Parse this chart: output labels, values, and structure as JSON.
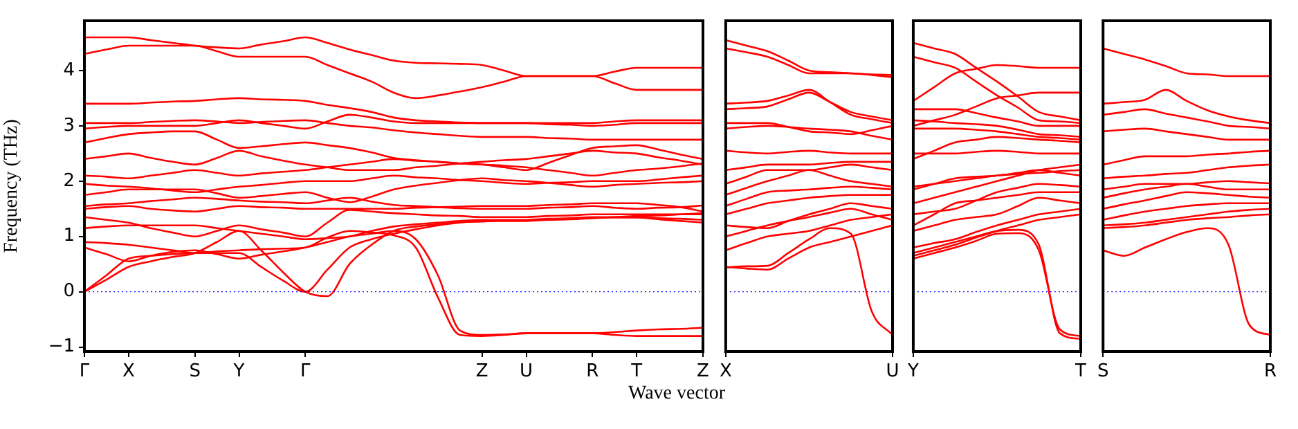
{
  "chart_data": [
    {
      "type": "line",
      "xlabel": "Wave vector",
      "ylabel": "Frequency (THz)",
      "ylim": [
        -1.08,
        4.9
      ],
      "yticks": [
        {
          "value": -1,
          "label": "−1"
        },
        0,
        1,
        2,
        3,
        4
      ],
      "grid": false,
      "legend": false,
      "marker": "none",
      "line_style": "solid",
      "ref_lines": [
        {
          "axis": "y",
          "value": 0,
          "color": "#0000ff",
          "line_style": "dotted"
        }
      ],
      "categories": [
        "Γ",
        null,
        "X",
        null,
        null,
        "S",
        null,
        "Y",
        null,
        null,
        "Γ",
        null,
        null,
        null,
        null,
        null,
        null,
        null,
        "Z",
        null,
        "U",
        null,
        null,
        "R",
        null,
        "T",
        null,
        null,
        "Z"
      ],
      "series": [
        {
          "color": "#ff0000",
          "values": [
            4.6,
            4.6,
            4.6,
            4.55,
            4.5,
            4.45,
            4.42,
            4.4,
            4.47,
            4.53,
            4.6,
            4.5,
            4.38,
            4.28,
            4.18,
            4.14,
            4.13,
            4.12,
            4.1,
            4.0,
            3.9,
            3.9,
            3.9,
            3.9,
            3.98,
            4.05,
            4.05,
            4.05,
            4.05
          ]
        },
        {
          "color": "#ff0000",
          "values": [
            4.3,
            4.38,
            4.45,
            4.45,
            4.45,
            4.45,
            4.35,
            4.25,
            4.25,
            4.25,
            4.25,
            4.1,
            3.95,
            3.8,
            3.6,
            3.5,
            3.55,
            3.62,
            3.7,
            3.8,
            3.9,
            3.9,
            3.9,
            3.9,
            3.77,
            3.65,
            3.65,
            3.65,
            3.65
          ]
        },
        {
          "color": "#ff0000",
          "values": [
            3.4,
            3.4,
            3.4,
            3.42,
            3.44,
            3.45,
            3.48,
            3.5,
            3.48,
            3.47,
            3.45,
            3.38,
            3.32,
            3.25,
            3.15,
            3.1,
            3.08,
            3.06,
            3.05,
            3.05,
            3.05,
            3.05,
            3.05,
            3.05,
            3.08,
            3.1,
            3.1,
            3.1,
            3.1
          ]
        },
        {
          "color": "#ff0000",
          "values": [
            3.05,
            3.05,
            3.05,
            3.07,
            3.09,
            3.1,
            3.08,
            3.05,
            3.07,
            3.09,
            3.1,
            3.05,
            3.0,
            2.97,
            2.92,
            2.88,
            2.85,
            2.82,
            2.8,
            2.8,
            2.8,
            2.78,
            2.77,
            2.75,
            2.75,
            2.75,
            2.75,
            2.75,
            2.75
          ]
        },
        {
          "color": "#ff0000",
          "values": [
            2.95,
            2.98,
            3.0,
            3.0,
            3.0,
            3.0,
            3.05,
            3.1,
            3.05,
            3.0,
            2.95,
            3.08,
            3.2,
            3.15,
            3.08,
            3.05,
            3.05,
            3.05,
            3.05,
            3.05,
            3.05,
            3.03,
            3.02,
            3.0,
            3.02,
            3.05,
            3.05,
            3.05,
            3.05
          ]
        },
        {
          "color": "#ff0000",
          "values": [
            2.7,
            2.78,
            2.85,
            2.88,
            2.9,
            2.9,
            2.75,
            2.6,
            2.63,
            2.67,
            2.7,
            2.65,
            2.6,
            2.52,
            2.42,
            2.38,
            2.35,
            2.32,
            2.3,
            2.25,
            2.2,
            2.33,
            2.47,
            2.6,
            2.63,
            2.65,
            2.57,
            2.48,
            2.4
          ]
        },
        {
          "color": "#ff0000",
          "values": [
            2.4,
            2.45,
            2.5,
            2.42,
            2.35,
            2.3,
            2.42,
            2.55,
            2.45,
            2.37,
            2.3,
            2.25,
            2.2,
            2.2,
            2.2,
            2.25,
            2.28,
            2.32,
            2.35,
            2.38,
            2.4,
            2.45,
            2.5,
            2.55,
            2.52,
            2.5,
            2.43,
            2.37,
            2.3
          ]
        },
        {
          "color": "#ff0000",
          "values": [
            2.1,
            2.08,
            2.05,
            2.1,
            2.15,
            2.2,
            2.15,
            2.1,
            2.14,
            2.17,
            2.2,
            2.25,
            2.3,
            2.35,
            2.4,
            2.37,
            2.35,
            2.32,
            2.3,
            2.28,
            2.25,
            2.2,
            2.15,
            2.1,
            2.15,
            2.2,
            2.23,
            2.27,
            2.32
          ]
        },
        {
          "color": "#ff0000",
          "values": [
            1.95,
            1.92,
            1.9,
            1.87,
            1.83,
            1.8,
            1.85,
            1.9,
            1.93,
            1.97,
            2.0,
            2.0,
            2.0,
            2.05,
            2.1,
            2.07,
            2.05,
            2.02,
            2.0,
            1.97,
            1.95,
            1.97,
            1.98,
            2.0,
            2.0,
            2.0,
            2.03,
            2.07,
            2.1
          ]
        },
        {
          "color": "#ff0000",
          "values": [
            1.75,
            1.8,
            1.85,
            1.85,
            1.85,
            1.85,
            1.78,
            1.7,
            1.73,
            1.77,
            1.8,
            1.7,
            1.62,
            1.72,
            1.85,
            1.92,
            1.97,
            2.02,
            2.05,
            2.02,
            2.0,
            1.97,
            1.93,
            1.9,
            1.93,
            1.95,
            1.97,
            1.98,
            2.0
          ]
        },
        {
          "color": "#ff0000",
          "values": [
            1.55,
            1.58,
            1.6,
            1.64,
            1.67,
            1.7,
            1.68,
            1.65,
            1.63,
            1.62,
            1.6,
            1.65,
            1.7,
            1.63,
            1.57,
            1.55,
            1.53,
            1.51,
            1.5,
            1.5,
            1.5,
            1.52,
            1.53,
            1.55,
            1.52,
            1.5,
            1.52,
            1.53,
            1.56
          ]
        },
        {
          "color": "#ff0000",
          "values": [
            1.5,
            1.53,
            1.55,
            1.5,
            1.47,
            1.45,
            1.5,
            1.55,
            1.53,
            1.52,
            1.5,
            1.5,
            1.5,
            1.5,
            1.5,
            1.52,
            1.53,
            1.54,
            1.55,
            1.55,
            1.55,
            1.57,
            1.58,
            1.6,
            1.6,
            1.6,
            1.57,
            1.53,
            1.45
          ]
        },
        {
          "color": "#ff0000",
          "values": [
            1.35,
            1.3,
            1.25,
            1.15,
            1.07,
            1.0,
            1.1,
            1.2,
            1.13,
            1.07,
            1.0,
            1.25,
            1.48,
            1.45,
            1.42,
            1.4,
            1.38,
            1.37,
            1.35,
            1.35,
            1.35,
            1.37,
            1.38,
            1.4,
            1.4,
            1.4,
            1.4,
            1.4,
            1.4
          ]
        },
        {
          "color": "#ff0000",
          "values": [
            1.15,
            1.18,
            1.2,
            1.2,
            1.2,
            1.2,
            1.15,
            1.1,
            1.05,
            1.0,
            0.95,
            0.97,
            1.0,
            1.1,
            1.18,
            1.22,
            1.25,
            1.28,
            1.3,
            1.3,
            1.3,
            1.32,
            1.33,
            1.35,
            1.35,
            1.35,
            1.33,
            1.32,
            1.3
          ]
        },
        {
          "color": "#ff0000",
          "values": [
            0,
            0.3,
            0.6,
            0.65,
            0.68,
            0.7,
            0.7,
            0.7,
            0.45,
            0.2,
            0,
            0.4,
            0.8,
            0.95,
            1.05,
            1.13,
            1.2,
            1.25,
            1.28,
            1.28,
            1.28,
            1.3,
            1.31,
            1.33,
            1.35,
            1.37,
            1.38,
            1.4,
            1.42
          ]
        },
        {
          "color": "#ff0000",
          "values": [
            0,
            0.22,
            0.45,
            0.55,
            0.63,
            0.7,
            0.9,
            1.1,
            0.75,
            0.35,
            0,
            -0.08,
            0.5,
            0.85,
            1.1,
            1.18,
            1.22,
            1.26,
            1.27,
            1.29,
            1.29,
            1.31,
            1.32,
            1.34,
            1.34,
            1.34,
            1.31,
            1.28,
            1.25
          ]
        },
        {
          "color": "#ff0000",
          "values": [
            0.9,
            0.88,
            0.85,
            0.8,
            0.75,
            0.7,
            0.73,
            0.75,
            0.77,
            0.78,
            0.8,
            0.98,
            1.1,
            1.07,
            1.02,
            0.8,
            -0.1,
            -0.78,
            -0.8,
            -0.78,
            -0.75,
            -0.75,
            -0.75,
            -0.75,
            -0.78,
            -0.8,
            -0.8,
            -0.8,
            -0.8
          ]
        },
        {
          "color": "#ff0000",
          "values": [
            0.8,
            0.68,
            0.55,
            0.65,
            0.72,
            0.75,
            0.68,
            0.6,
            0.67,
            0.73,
            0.8,
            0.9,
            1.0,
            1.05,
            1.1,
            0.95,
            0.3,
            -0.7,
            -0.78,
            -0.77,
            -0.75,
            -0.75,
            -0.75,
            -0.75,
            -0.73,
            -0.7,
            -0.68,
            -0.67,
            -0.65
          ]
        }
      ]
    },
    {
      "type": "line",
      "tick_labels": "x",
      "ylim": [
        -1.08,
        4.9
      ],
      "grid": false,
      "legend": false,
      "marker": "none",
      "line_style": "solid",
      "ref_lines": [
        {
          "axis": "y",
          "value": 0,
          "color": "#0000ff",
          "line_style": "dotted"
        }
      ],
      "categories": [
        "X",
        null,
        null,
        null,
        null,
        null,
        null,
        null,
        "U"
      ],
      "series": [
        {
          "color": "#ff0000",
          "values": [
            4.55,
            4.45,
            4.35,
            4.18,
            4.0,
            3.97,
            3.95,
            3.93,
            3.92
          ]
        },
        {
          "color": "#ff0000",
          "values": [
            4.4,
            4.33,
            4.25,
            4.1,
            3.95,
            3.95,
            3.95,
            3.92,
            3.88
          ]
        },
        {
          "color": "#ff0000",
          "values": [
            3.4,
            3.42,
            3.45,
            3.55,
            3.65,
            3.43,
            3.2,
            3.12,
            3.05
          ]
        },
        {
          "color": "#ff0000",
          "values": [
            3.3,
            3.32,
            3.35,
            3.48,
            3.6,
            3.43,
            3.25,
            3.17,
            3.1
          ]
        },
        {
          "color": "#ff0000",
          "values": [
            2.95,
            2.98,
            3.0,
            2.98,
            2.95,
            2.93,
            2.9,
            2.82,
            2.75
          ]
        },
        {
          "color": "#ff0000",
          "values": [
            3.05,
            3.05,
            3.05,
            2.98,
            2.9,
            2.88,
            2.85,
            2.92,
            3.0
          ]
        },
        {
          "color": "#ff0000",
          "values": [
            2.55,
            2.52,
            2.5,
            2.53,
            2.55,
            2.52,
            2.5,
            2.5,
            2.5
          ]
        },
        {
          "color": "#ff0000",
          "values": [
            2.2,
            2.25,
            2.3,
            2.3,
            2.3,
            2.33,
            2.35,
            2.35,
            2.35
          ]
        },
        {
          "color": "#ff0000",
          "values": [
            1.95,
            2.08,
            2.2,
            2.2,
            2.2,
            2.25,
            2.3,
            2.25,
            2.2
          ]
        },
        {
          "color": "#ff0000",
          "values": [
            1.75,
            1.88,
            2.0,
            2.1,
            2.2,
            2.1,
            2.0,
            1.95,
            1.9
          ]
        },
        {
          "color": "#ff0000",
          "values": [
            1.55,
            1.68,
            1.8,
            1.83,
            1.85,
            1.88,
            1.9,
            1.88,
            1.85
          ]
        },
        {
          "color": "#ff0000",
          "values": [
            1.4,
            1.5,
            1.6,
            1.65,
            1.7,
            1.73,
            1.75,
            1.75,
            1.75
          ]
        },
        {
          "color": "#ff0000",
          "values": [
            1.2,
            1.17,
            1.15,
            1.28,
            1.4,
            1.5,
            1.6,
            1.55,
            1.5
          ]
        },
        {
          "color": "#ff0000",
          "values": [
            1.0,
            1.1,
            1.2,
            1.28,
            1.35,
            1.43,
            1.5,
            1.4,
            1.3
          ]
        },
        {
          "color": "#ff0000",
          "values": [
            0.75,
            0.88,
            1.0,
            1.05,
            1.1,
            1.2,
            1.3,
            1.35,
            1.4
          ]
        },
        {
          "color": "#ff0000",
          "values": [
            0.45,
            0.42,
            0.4,
            0.6,
            0.8,
            0.9,
            1.0,
            1.1,
            1.2
          ]
        },
        {
          "color": "#ff0000",
          "values": [
            0.44,
            0.46,
            0.47,
            0.7,
            0.95,
            1.15,
            1.05,
            -0.35,
            -0.78
          ]
        }
      ]
    },
    {
      "type": "line",
      "tick_labels": "x",
      "ylim": [
        -1.08,
        4.9
      ],
      "grid": false,
      "legend": false,
      "marker": "none",
      "line_style": "solid",
      "ref_lines": [
        {
          "axis": "y",
          "value": 0,
          "color": "#0000ff",
          "line_style": "dotted"
        }
      ],
      "categories": [
        "Y",
        null,
        null,
        null,
        null,
        null,
        null,
        null,
        "T"
      ],
      "series": [
        {
          "color": "#ff0000",
          "values": [
            4.5,
            4.4,
            4.3,
            4.05,
            3.8,
            3.53,
            3.25,
            3.17,
            3.1
          ]
        },
        {
          "color": "#ff0000",
          "values": [
            4.25,
            4.15,
            4.05,
            3.8,
            3.55,
            3.33,
            3.1,
            3.08,
            3.05
          ]
        },
        {
          "color": "#ff0000",
          "values": [
            3.45,
            3.7,
            3.95,
            4.03,
            4.1,
            4.08,
            4.05,
            4.05,
            4.05
          ]
        },
        {
          "color": "#ff0000",
          "values": [
            3.0,
            3.1,
            3.2,
            3.35,
            3.5,
            3.55,
            3.6,
            3.6,
            3.6
          ]
        },
        {
          "color": "#ff0000",
          "values": [
            3.3,
            3.3,
            3.3,
            3.23,
            3.15,
            3.08,
            3.0,
            3.0,
            3.0
          ]
        },
        {
          "color": "#ff0000",
          "values": [
            3.1,
            3.08,
            3.05,
            3.03,
            3.0,
            2.93,
            2.85,
            2.83,
            2.8
          ]
        },
        {
          "color": "#ff0000",
          "values": [
            2.95,
            2.95,
            2.95,
            2.93,
            2.9,
            2.85,
            2.8,
            2.78,
            2.75
          ]
        },
        {
          "color": "#ff0000",
          "values": [
            2.4,
            2.55,
            2.7,
            2.75,
            2.8,
            2.78,
            2.75,
            2.73,
            2.7
          ]
        },
        {
          "color": "#ff0000",
          "values": [
            2.5,
            2.5,
            2.5,
            2.53,
            2.55,
            2.53,
            2.5,
            2.5,
            2.5
          ]
        },
        {
          "color": "#ff0000",
          "values": [
            1.9,
            1.95,
            2.0,
            2.05,
            2.1,
            2.13,
            2.15,
            2.18,
            2.2
          ]
        },
        {
          "color": "#ff0000",
          "values": [
            1.85,
            1.95,
            2.05,
            2.08,
            2.1,
            2.15,
            2.2,
            2.15,
            2.1
          ]
        },
        {
          "color": "#ff0000",
          "values": [
            1.6,
            1.7,
            1.8,
            1.9,
            2.0,
            2.1,
            2.2,
            2.25,
            2.3
          ]
        },
        {
          "color": "#ff0000",
          "values": [
            1.4,
            1.45,
            1.5,
            1.65,
            1.8,
            1.88,
            1.95,
            1.93,
            1.9
          ]
        },
        {
          "color": "#ff0000",
          "values": [
            1.2,
            1.4,
            1.6,
            1.65,
            1.7,
            1.75,
            1.8,
            1.8,
            1.8
          ]
        },
        {
          "color": "#ff0000",
          "values": [
            1.1,
            1.2,
            1.3,
            1.35,
            1.4,
            1.55,
            1.7,
            1.65,
            1.6
          ]
        },
        {
          "color": "#ff0000",
          "values": [
            0.8,
            0.88,
            0.95,
            1.08,
            1.2,
            1.3,
            1.4,
            1.45,
            1.5
          ]
        },
        {
          "color": "#ff0000",
          "values": [
            0.65,
            0.75,
            0.85,
            0.98,
            1.1,
            1.2,
            1.3,
            1.35,
            1.4
          ]
        },
        {
          "color": "#ff0000",
          "values": [
            0.6,
            0.7,
            0.8,
            0.92,
            1.05,
            1.06,
            0.75,
            -0.68,
            -0.8
          ]
        },
        {
          "color": "#ff0000",
          "values": [
            0.7,
            0.8,
            0.9,
            1.0,
            1.1,
            1.12,
            0.85,
            -0.75,
            -0.85
          ]
        }
      ]
    },
    {
      "type": "line",
      "tick_labels": "x",
      "ylim": [
        -1.08,
        4.9
      ],
      "grid": false,
      "legend": false,
      "marker": "none",
      "line_style": "solid",
      "ref_lines": [
        {
          "axis": "y",
          "value": 0,
          "color": "#0000ff",
          "line_style": "dotted"
        }
      ],
      "categories": [
        "S",
        null,
        null,
        null,
        null,
        null,
        null,
        null,
        "R"
      ],
      "series": [
        {
          "color": "#ff0000",
          "values": [
            4.4,
            4.3,
            4.2,
            4.08,
            3.95,
            3.93,
            3.9,
            3.9,
            3.9
          ]
        },
        {
          "color": "#ff0000",
          "values": [
            3.4,
            3.43,
            3.47,
            3.65,
            3.45,
            3.28,
            3.17,
            3.1,
            3.05
          ]
        },
        {
          "color": "#ff0000",
          "values": [
            3.2,
            3.25,
            3.3,
            3.22,
            3.15,
            3.08,
            3.0,
            2.98,
            2.95
          ]
        },
        {
          "color": "#ff0000",
          "values": [
            2.9,
            2.93,
            2.95,
            2.9,
            2.85,
            2.8,
            2.75,
            2.75,
            2.75
          ]
        },
        {
          "color": "#ff0000",
          "values": [
            2.3,
            2.38,
            2.45,
            2.45,
            2.45,
            2.48,
            2.5,
            2.53,
            2.55
          ]
        },
        {
          "color": "#ff0000",
          "values": [
            2.05,
            2.08,
            2.1,
            2.13,
            2.15,
            2.2,
            2.25,
            2.28,
            2.3
          ]
        },
        {
          "color": "#ff0000",
          "values": [
            1.85,
            1.9,
            1.95,
            1.95,
            1.95,
            1.98,
            2.0,
            1.98,
            1.96
          ]
        },
        {
          "color": "#ff0000",
          "values": [
            1.7,
            1.78,
            1.85,
            1.9,
            1.95,
            1.9,
            1.85,
            1.85,
            1.85
          ]
        },
        {
          "color": "#ff0000",
          "values": [
            1.5,
            1.58,
            1.65,
            1.73,
            1.8,
            1.78,
            1.75,
            1.72,
            1.7
          ]
        },
        {
          "color": "#ff0000",
          "values": [
            1.3,
            1.38,
            1.45,
            1.5,
            1.55,
            1.58,
            1.6,
            1.6,
            1.6
          ]
        },
        {
          "color": "#ff0000",
          "values": [
            1.2,
            1.22,
            1.25,
            1.3,
            1.35,
            1.4,
            1.45,
            1.48,
            1.5
          ]
        },
        {
          "color": "#ff0000",
          "values": [
            1.15,
            1.17,
            1.2,
            1.25,
            1.3,
            1.33,
            1.35,
            1.38,
            1.4
          ]
        },
        {
          "color": "#ff0000",
          "values": [
            0.75,
            0.65,
            0.8,
            0.95,
            1.08,
            1.15,
            0.85,
            -0.6,
            -0.78
          ]
        }
      ]
    }
  ]
}
